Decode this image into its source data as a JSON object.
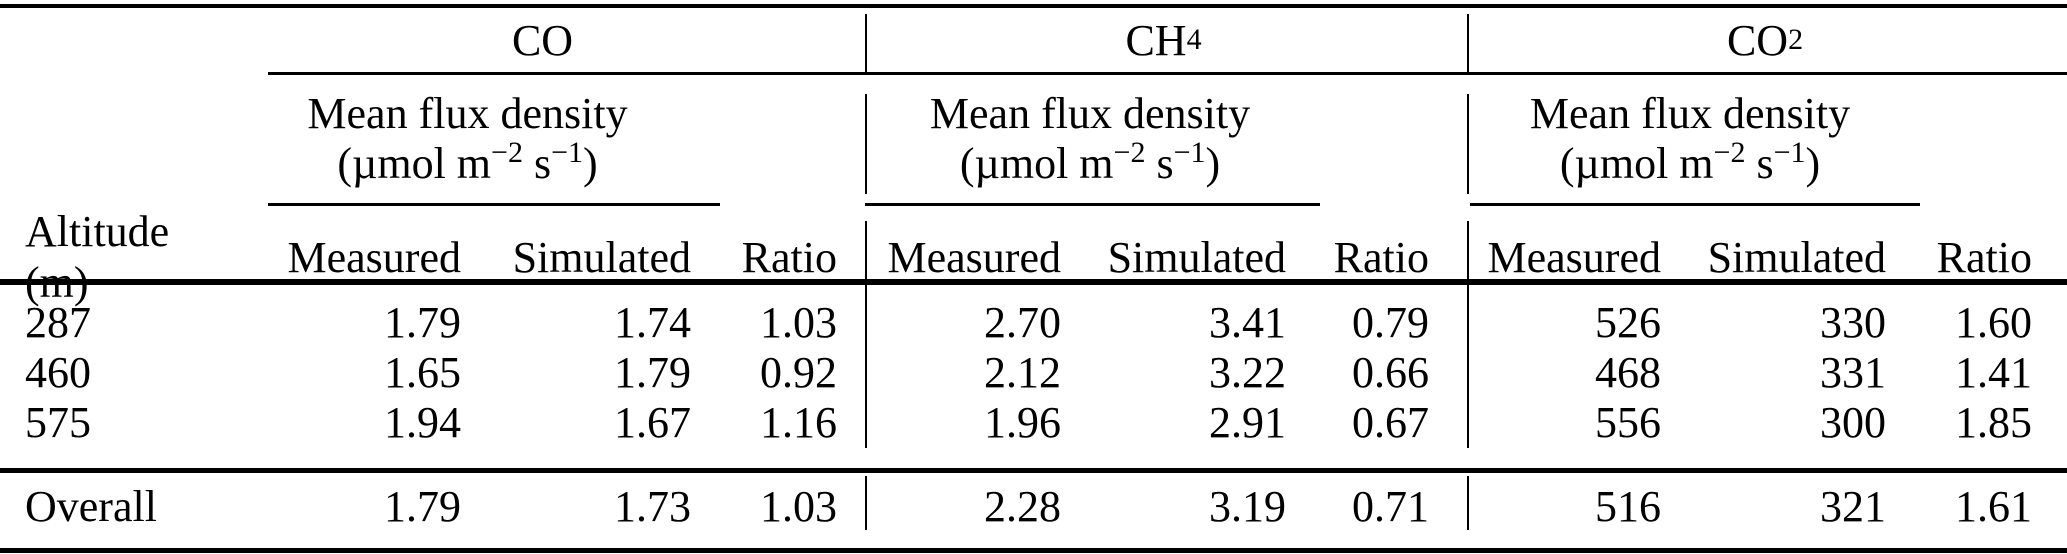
{
  "table": {
    "row_header": "Altitude (m)",
    "gases": [
      {
        "base": "CO",
        "sub": ""
      },
      {
        "base": "CH",
        "sub": "4"
      },
      {
        "base": "CO",
        "sub": "2"
      }
    ],
    "flux": {
      "title": "Mean flux density",
      "unit_pre": "(µmol m",
      "unit_sup1": "−2",
      "unit_mid": " s",
      "unit_sup2": "−1",
      "unit_post": ")"
    },
    "columns": {
      "measured": "Measured",
      "simulated": "Simulated",
      "ratio": "Ratio"
    },
    "rows": [
      {
        "altitude": "287",
        "co": {
          "measured": "1.79",
          "simulated": "1.74",
          "ratio": "1.03"
        },
        "ch4": {
          "measured": "2.70",
          "simulated": "3.41",
          "ratio": "0.79"
        },
        "co2": {
          "measured": "526",
          "simulated": "330",
          "ratio": "1.60"
        }
      },
      {
        "altitude": "460",
        "co": {
          "measured": "1.65",
          "simulated": "1.79",
          "ratio": "0.92"
        },
        "ch4": {
          "measured": "2.12",
          "simulated": "3.22",
          "ratio": "0.66"
        },
        "co2": {
          "measured": "468",
          "simulated": "331",
          "ratio": "1.41"
        }
      },
      {
        "altitude": "575",
        "co": {
          "measured": "1.94",
          "simulated": "1.67",
          "ratio": "1.16"
        },
        "ch4": {
          "measured": "1.96",
          "simulated": "2.91",
          "ratio": "0.67"
        },
        "co2": {
          "measured": "556",
          "simulated": "300",
          "ratio": "1.85"
        }
      }
    ],
    "overall": {
      "label": "Overall",
      "co": {
        "measured": "1.79",
        "simulated": "1.73",
        "ratio": "1.03"
      },
      "ch4": {
        "measured": "2.28",
        "simulated": "3.19",
        "ratio": "0.71"
      },
      "co2": {
        "measured": "516",
        "simulated": "321",
        "ratio": "1.61"
      }
    }
  }
}
